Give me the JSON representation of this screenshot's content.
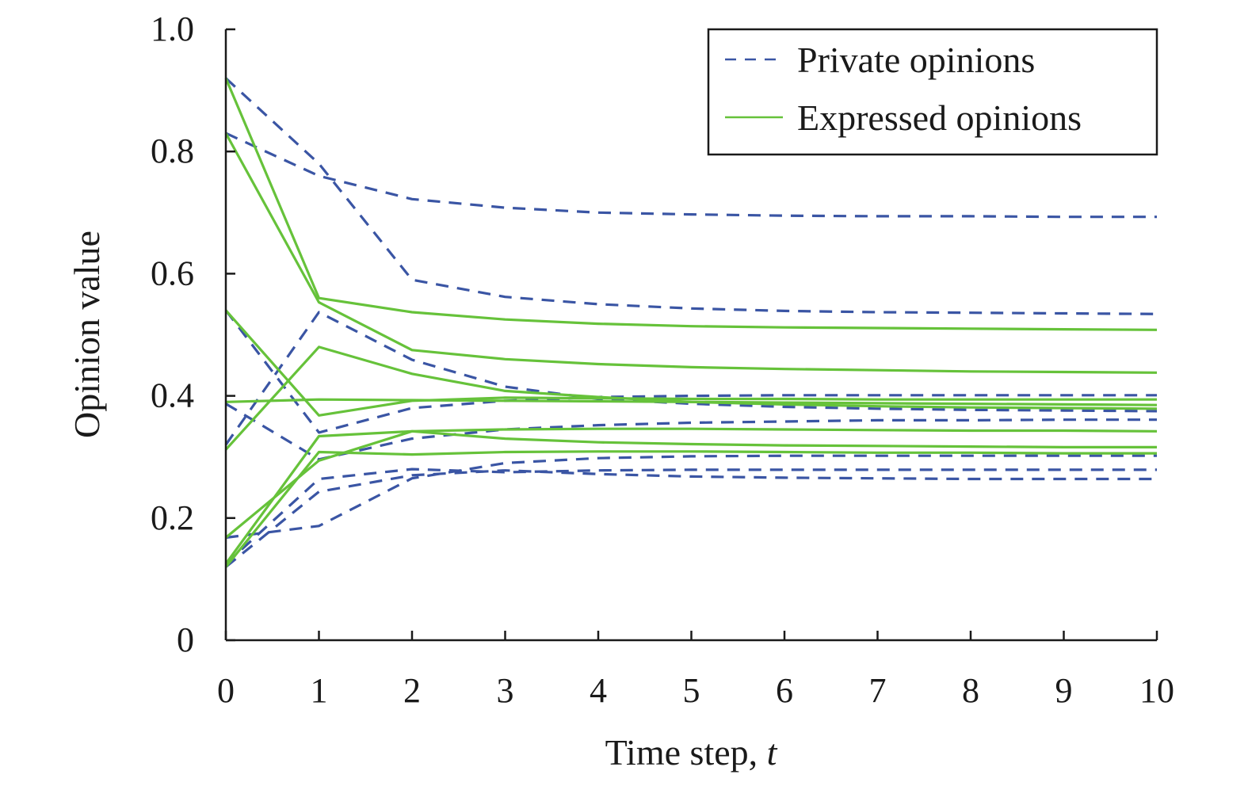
{
  "chart_data": {
    "type": "line",
    "title": "",
    "xlabel": "Time step, ",
    "xlabel_italic": "t",
    "ylabel": "Opinion value",
    "xlim": [
      0,
      10
    ],
    "ylim": [
      0,
      1.0
    ],
    "x": [
      0,
      1,
      2,
      3,
      4,
      5,
      6,
      7,
      8,
      9,
      10
    ],
    "x_ticks": [
      "0",
      "1",
      "2",
      "3",
      "4",
      "5",
      "6",
      "7",
      "8",
      "9",
      "10"
    ],
    "y_ticks": [
      {
        "v": 0,
        "label": "0"
      },
      {
        "v": 0.2,
        "label": "0.2"
      },
      {
        "v": 0.4,
        "label": "0.4"
      },
      {
        "v": 0.6,
        "label": "0.6"
      },
      {
        "v": 0.8,
        "label": "0.8"
      },
      {
        "v": 1.0,
        "label": "1.0"
      }
    ],
    "grid": false,
    "legend_position": "top-right",
    "legend": [
      {
        "label": "Private opinions",
        "style": "dashed",
        "color": "#3a55a4"
      },
      {
        "label": "Expressed opinions",
        "style": "solid",
        "color": "#66c23a"
      }
    ],
    "private_opinions": [
      [
        0.92,
        0.78,
        0.59,
        0.562,
        0.55,
        0.543,
        0.539,
        0.537,
        0.536,
        0.535,
        0.534
      ],
      [
        0.83,
        0.76,
        0.722,
        0.708,
        0.7,
        0.697,
        0.695,
        0.694,
        0.694,
        0.693,
        0.693
      ],
      [
        0.32,
        0.537,
        0.459,
        0.415,
        0.395,
        0.387,
        0.382,
        0.379,
        0.377,
        0.376,
        0.375
      ],
      [
        0.54,
        0.34,
        0.38,
        0.392,
        0.398,
        0.4,
        0.401,
        0.401,
        0.401,
        0.401,
        0.401
      ],
      [
        0.387,
        0.296,
        0.33,
        0.345,
        0.352,
        0.356,
        0.358,
        0.36,
        0.36,
        0.361,
        0.361
      ],
      [
        0.168,
        0.187,
        0.265,
        0.29,
        0.298,
        0.301,
        0.302,
        0.302,
        0.302,
        0.302,
        0.302
      ],
      [
        0.125,
        0.264,
        0.28,
        0.275,
        0.278,
        0.279,
        0.279,
        0.279,
        0.279,
        0.279,
        0.279
      ],
      [
        0.12,
        0.243,
        0.27,
        0.278,
        0.272,
        0.268,
        0.266,
        0.265,
        0.264,
        0.264,
        0.264
      ]
    ],
    "expressed_opinions": [
      [
        0.92,
        0.56,
        0.537,
        0.525,
        0.518,
        0.514,
        0.512,
        0.511,
        0.51,
        0.509,
        0.508
      ],
      [
        0.83,
        0.553,
        0.475,
        0.46,
        0.452,
        0.447,
        0.444,
        0.442,
        0.44,
        0.439,
        0.438
      ],
      [
        0.312,
        0.48,
        0.436,
        0.408,
        0.398,
        0.39,
        0.386,
        0.383,
        0.381,
        0.38,
        0.379
      ],
      [
        0.54,
        0.368,
        0.392,
        0.397,
        0.396,
        0.395,
        0.395,
        0.394,
        0.394,
        0.394,
        0.394
      ],
      [
        0.39,
        0.394,
        0.393,
        0.392,
        0.391,
        0.39,
        0.389,
        0.388,
        0.387,
        0.386,
        0.385
      ],
      [
        0.168,
        0.294,
        0.342,
        0.345,
        0.346,
        0.346,
        0.345,
        0.344,
        0.343,
        0.343,
        0.342
      ],
      [
        0.125,
        0.334,
        0.342,
        0.33,
        0.324,
        0.321,
        0.319,
        0.318,
        0.317,
        0.316,
        0.316
      ],
      [
        0.12,
        0.308,
        0.304,
        0.308,
        0.309,
        0.309,
        0.308,
        0.307,
        0.307,
        0.306,
        0.306
      ]
    ]
  }
}
